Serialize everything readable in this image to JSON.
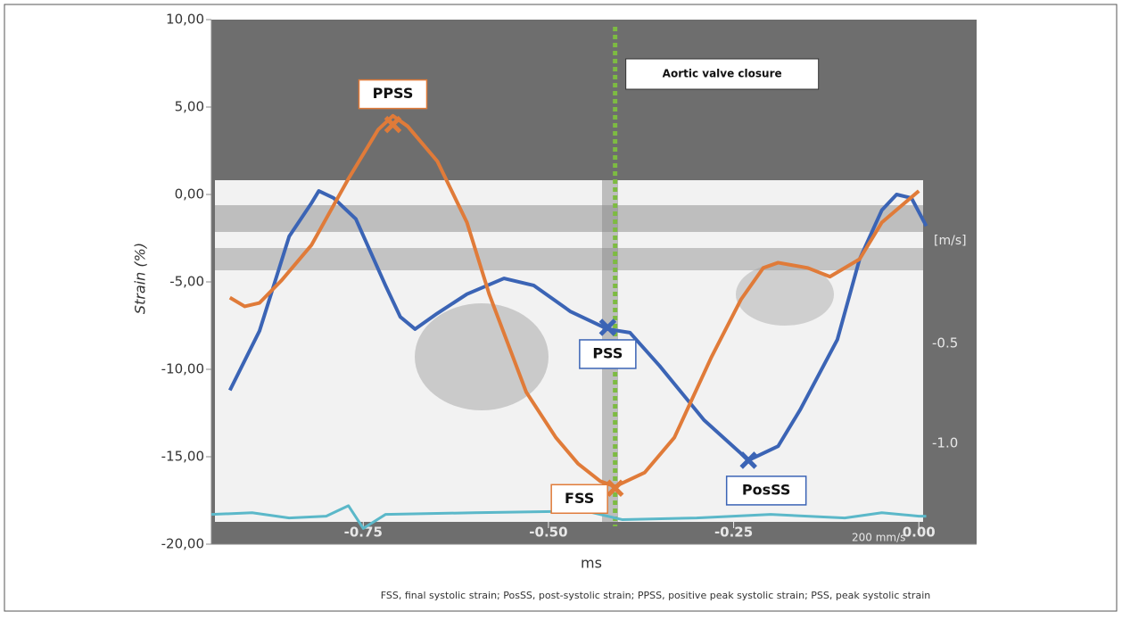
{
  "chart_data": {
    "type": "line",
    "ylabel": "Strain (%)",
    "xlabel": "ms",
    "caption": "FSS, final systolic strain; PosSS, post-systolic strain; PPSS, positive peak systolic strain; PSS, peak systolic strain",
    "xlim": [
      -0.955,
      0.078
    ],
    "xticks": [
      {
        "value": -0.75,
        "label": "-0.75"
      },
      {
        "value": -0.5,
        "label": "-0.50"
      },
      {
        "value": -0.25,
        "label": "-0.25"
      },
      {
        "value": 0,
        "label": "0.00"
      }
    ],
    "ylim": [
      -20,
      10
    ],
    "yticks": [
      {
        "value": -20,
        "label": "-20,00"
      },
      {
        "value": -15,
        "label": "-15,00"
      },
      {
        "value": -10,
        "label": "-10,00"
      },
      {
        "value": -5,
        "label": "-5,00"
      },
      {
        "value": 0,
        "label": "0,00"
      },
      {
        "value": 5,
        "label": "5,00"
      },
      {
        "value": 10,
        "label": "10,00"
      }
    ],
    "image_labels": [
      "[m/s]",
      "-0.5",
      "-1.0",
      "200 mm/s"
    ],
    "series": [
      {
        "color": "#3b64b5",
        "x": [
          -0.93,
          -0.89,
          -0.85,
          -0.82,
          -0.81,
          -0.79,
          -0.76,
          -0.72,
          -0.7,
          -0.68,
          -0.65,
          -0.61,
          -0.56,
          -0.52,
          -0.47,
          -0.42,
          -0.39,
          -0.35,
          -0.29,
          -0.23,
          -0.19,
          -0.16,
          -0.11,
          -0.08,
          -0.05,
          -0.03,
          -0.01,
          0.01
        ],
        "values": [
          -11.2,
          -7.8,
          -2.4,
          -0.5,
          0.2,
          -0.2,
          -1.4,
          -5.2,
          -7.0,
          -7.7,
          -6.8,
          -5.7,
          -4.8,
          -5.2,
          -6.7,
          -7.7,
          -7.9,
          -9.8,
          -12.9,
          -15.2,
          -14.4,
          -12.3,
          -8.3,
          -3.7,
          -0.9,
          0,
          -0.2,
          -1.8
        ]
      },
      {
        "color": "#e07b39",
        "x": [
          -0.93,
          -0.91,
          -0.89,
          -0.86,
          -0.82,
          -0.77,
          -0.73,
          -0.71,
          -0.69,
          -0.65,
          -0.61,
          -0.58,
          -0.53,
          -0.49,
          -0.46,
          -0.43,
          -0.41,
          -0.37,
          -0.33,
          -0.28,
          -0.24,
          -0.21,
          -0.19,
          -0.15,
          -0.12,
          -0.08,
          -0.05,
          0.0
        ],
        "values": [
          -5.9,
          -6.4,
          -6.2,
          -4.9,
          -2.9,
          0.9,
          3.7,
          4.5,
          3.9,
          1.9,
          -1.6,
          -5.7,
          -11.3,
          -13.9,
          -15.4,
          -16.4,
          -16.7,
          -15.9,
          -13.9,
          -9.3,
          -6.0,
          -4.2,
          -3.9,
          -4.2,
          -4.7,
          -3.7,
          -1.6,
          0.2
        ]
      },
      {
        "color": "#5bb8c9",
        "x": [
          -0.955,
          -0.9,
          -0.85,
          -0.8,
          -0.77,
          -0.75,
          -0.72,
          -0.6,
          -0.45,
          -0.4,
          -0.3,
          -0.2,
          -0.1,
          -0.05,
          0.0,
          0.01
        ],
        "values": [
          -18.3,
          -18.2,
          -18.5,
          -18.4,
          -17.8,
          -19.1,
          -18.3,
          -18.2,
          -18.1,
          -18.6,
          -18.5,
          -18.3,
          -18.5,
          -18.2,
          -18.4,
          -18.4
        ]
      }
    ],
    "annotations": [
      {
        "text": "PPSS",
        "x": -0.71,
        "y": 4.0,
        "color": "#e07b39"
      },
      {
        "text": "PSS",
        "x": -0.42,
        "y": -7.6,
        "color": "#3b64b5"
      },
      {
        "text": "FSS",
        "x": -0.41,
        "y": -16.8,
        "color": "#e07b39"
      },
      {
        "text": "PosSS",
        "x": -0.23,
        "y": -15.2,
        "color": "#3b64b5"
      }
    ],
    "events": [
      {
        "x": -0.41,
        "label": "Aortic valve closure",
        "color": "#7dbb42"
      }
    ]
  }
}
